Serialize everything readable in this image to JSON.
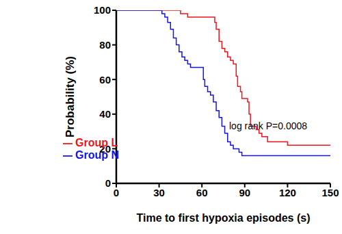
{
  "chart_data": {
    "type": "line",
    "title": "",
    "x_label": "Time to first hypoxia episodes (s)",
    "y_label": "Probability (%)",
    "annotations": [
      "log rank P=0.0008"
    ],
    "series": [
      {
        "name": "Group L",
        "color": "#f0141e",
        "x": [
          0,
          43,
          45,
          50,
          68,
          69,
          70,
          72,
          74,
          76,
          78,
          80,
          82,
          84,
          85,
          87,
          88,
          92,
          93,
          94,
          98,
          100,
          102,
          106,
          120,
          150
        ],
        "values": [
          100,
          100,
          98,
          96,
          96,
          93,
          89,
          82,
          78,
          76,
          73,
          71,
          69,
          62,
          56,
          53,
          49,
          47,
          40,
          33,
          31,
          29,
          27,
          24,
          22,
          22
        ]
      },
      {
        "name": "Group N",
        "color": "#1414e6",
        "x": [
          0,
          30,
          32,
          34,
          36,
          38,
          40,
          42,
          44,
          46,
          48,
          50,
          52,
          59,
          61,
          62,
          64,
          66,
          68,
          70,
          72,
          74,
          76,
          78,
          80,
          82,
          86,
          88,
          150
        ],
        "values": [
          100,
          100,
          98,
          96,
          93,
          89,
          84,
          80,
          76,
          73,
          71,
          69,
          67,
          67,
          60,
          56,
          53,
          51,
          47,
          42,
          38,
          33,
          29,
          24,
          22,
          20,
          18,
          16,
          16
        ]
      }
    ],
    "xlim": [
      0,
      150
    ],
    "xticks": [
      0,
      30,
      60,
      90,
      120,
      150
    ],
    "ylim": [
      0,
      100
    ],
    "yticks": [
      0,
      20,
      40,
      60,
      80,
      100
    ],
    "grid": false,
    "legend": "lower left",
    "line_style": "step"
  }
}
